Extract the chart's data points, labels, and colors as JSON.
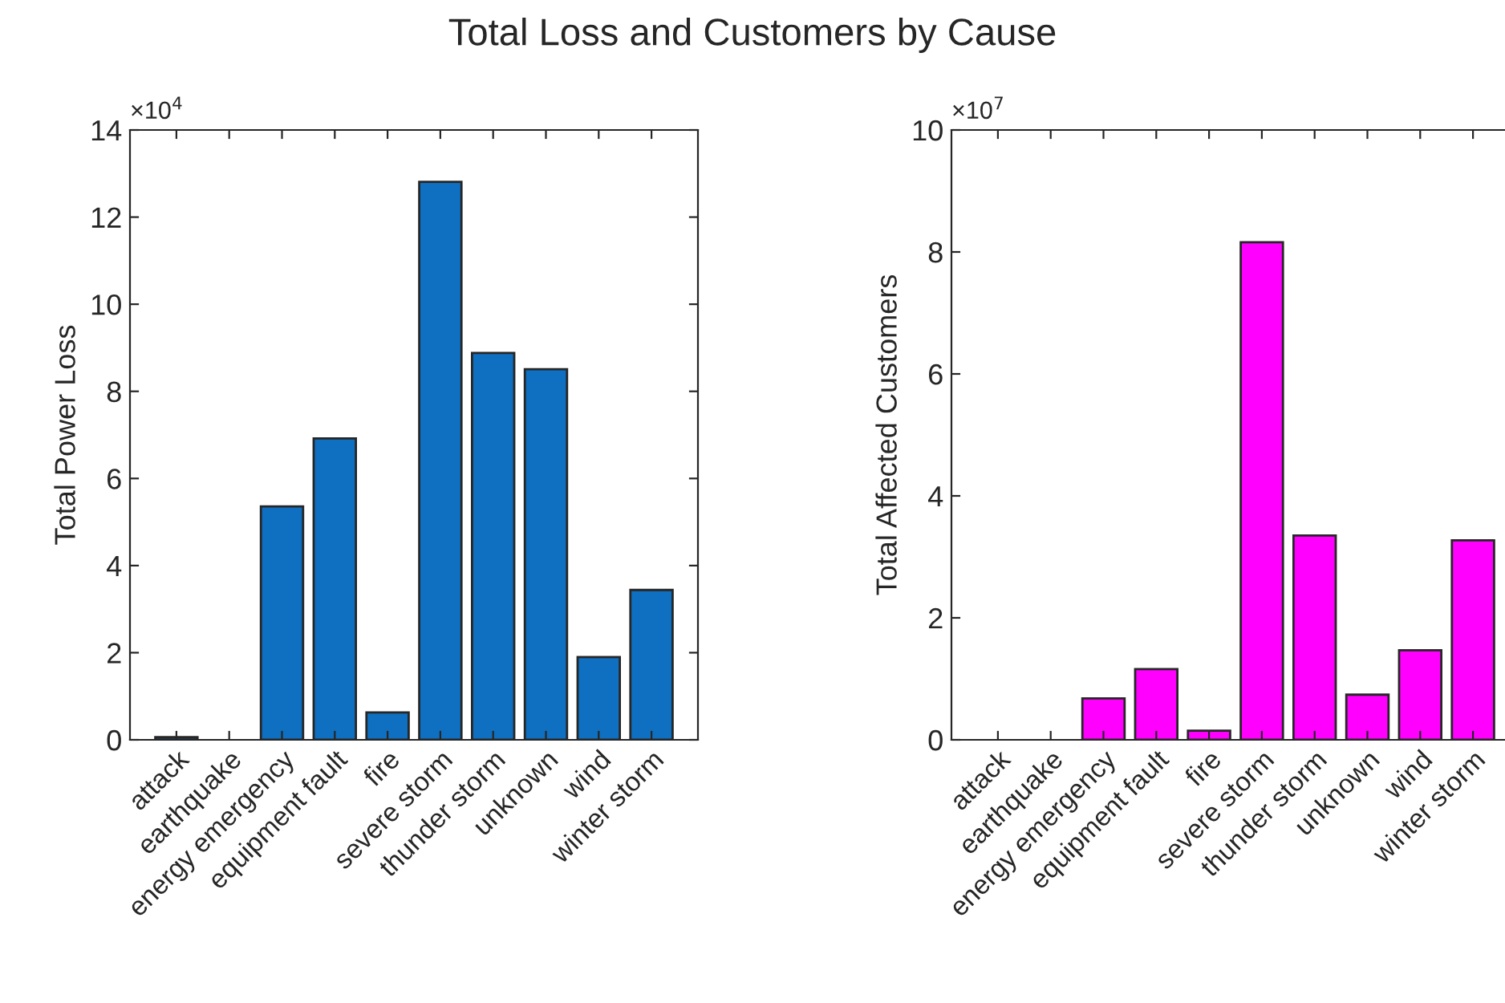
{
  "chart_data": [
    {
      "type": "bar",
      "title": "Total Loss and Customers by Cause",
      "ylabel": "Total Power Loss",
      "categories": [
        "attack",
        "earthquake",
        "energy emergency",
        "equipment fault",
        "fire",
        "severe storm",
        "thunder storm",
        "unknown",
        "wind",
        "winter storm"
      ],
      "values": [
        0.06,
        0,
        5.36,
        6.92,
        0.63,
        12.81,
        8.88,
        8.51,
        1.9,
        3.44
      ],
      "color": "#0f6fc0",
      "ylim": [
        0,
        14
      ],
      "yticks": [
        0,
        2,
        4,
        6,
        8,
        10,
        12,
        14
      ],
      "annotations": [
        "×10$^{4}$"
      ],
      "grid": false,
      "legend": false
    },
    {
      "type": "bar",
      "ylabel": "Total Affected Customers",
      "categories": [
        "attack",
        "earthquake",
        "energy emergency",
        "equipment fault",
        "fire",
        "severe storm",
        "thunder storm",
        "unknown",
        "wind",
        "winter storm"
      ],
      "values": [
        0,
        0,
        0.68,
        1.16,
        0.15,
        8.16,
        3.35,
        0.74,
        1.47,
        3.27
      ],
      "color": "#ff00ff",
      "ylim": [
        0,
        10
      ],
      "yticks": [
        0,
        2,
        4,
        6,
        8,
        10
      ],
      "annotations": [
        "×10$^{7}$"
      ],
      "grid": false,
      "legend": false
    }
  ]
}
